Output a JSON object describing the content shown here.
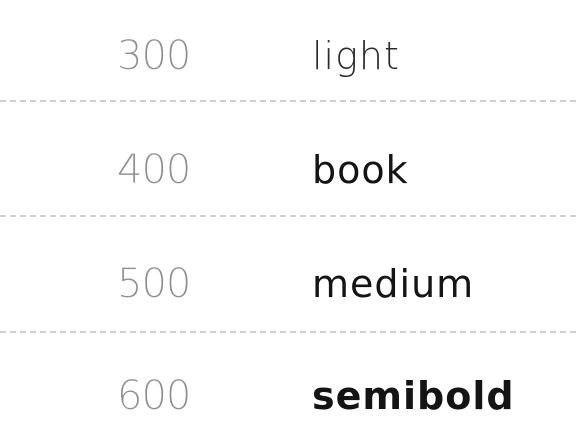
{
  "weights": [
    {
      "value": "300",
      "name": "light"
    },
    {
      "value": "400",
      "name": "book"
    },
    {
      "value": "500",
      "name": "medium"
    },
    {
      "value": "600",
      "name": "semibold"
    }
  ]
}
